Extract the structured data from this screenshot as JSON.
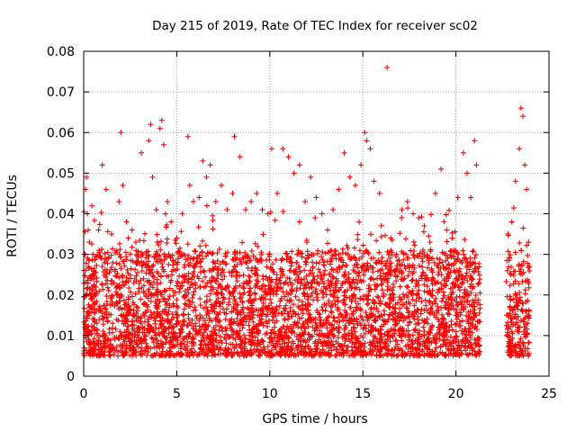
{
  "chart_data": {
    "type": "scatter",
    "title": "Day 215 of 2019, Rate Of TEC Index for receiver sc02",
    "xlabel": "GPS time / hours",
    "ylabel": "ROTI / TECUs",
    "xlim": [
      0,
      25
    ],
    "ylim": [
      0,
      0.08
    ],
    "xticks": [
      0,
      5,
      10,
      15,
      20,
      25
    ],
    "xtick_labels": [
      "0",
      "5",
      "10",
      "15",
      "20",
      "25"
    ],
    "yticks": [
      0,
      0.01,
      0.02,
      0.03,
      0.04,
      0.05,
      0.06,
      0.07,
      0.08
    ],
    "ytick_labels": [
      "0",
      "0.01",
      "0.02",
      "0.03",
      "0.04",
      "0.05",
      "0.06",
      "0.07",
      "0.08"
    ],
    "grid": true,
    "marker": "+",
    "marker_color": "#ff0000",
    "data_gap_hours": [
      21.3,
      22.7
    ],
    "series": [
      {
        "name": "ROTI",
        "points": [
          [
            0.1,
            0.046
          ],
          [
            0.15,
            0.049
          ],
          [
            0.2,
            0.04
          ],
          [
            0.3,
            0.033
          ],
          [
            0.5,
            0.03
          ],
          [
            0.8,
            0.036
          ],
          [
            1.0,
            0.052
          ],
          [
            1.2,
            0.046
          ],
          [
            1.5,
            0.035
          ],
          [
            1.9,
            0.043
          ],
          [
            2.0,
            0.06
          ],
          [
            2.1,
            0.047
          ],
          [
            2.3,
            0.038
          ],
          [
            2.6,
            0.036
          ],
          [
            2.8,
            0.033
          ],
          [
            3.1,
            0.055
          ],
          [
            3.5,
            0.058
          ],
          [
            3.6,
            0.062
          ],
          [
            3.7,
            0.049
          ],
          [
            3.9,
            0.041
          ],
          [
            4.1,
            0.061
          ],
          [
            4.2,
            0.063
          ],
          [
            4.3,
            0.057
          ],
          [
            4.5,
            0.043
          ],
          [
            4.7,
            0.038
          ],
          [
            5.0,
            0.034
          ],
          [
            5.3,
            0.04
          ],
          [
            5.6,
            0.059
          ],
          [
            5.7,
            0.047
          ],
          [
            5.9,
            0.043
          ],
          [
            6.2,
            0.044
          ],
          [
            6.4,
            0.053
          ],
          [
            6.6,
            0.049
          ],
          [
            6.8,
            0.052
          ],
          [
            7.1,
            0.043
          ],
          [
            7.4,
            0.047
          ],
          [
            7.7,
            0.041
          ],
          [
            8.0,
            0.045
          ],
          [
            8.1,
            0.059
          ],
          [
            8.4,
            0.054
          ],
          [
            8.7,
            0.041
          ],
          [
            9.0,
            0.043
          ],
          [
            9.3,
            0.045
          ],
          [
            9.6,
            0.041
          ],
          [
            9.9,
            0.04
          ],
          [
            10.1,
            0.056
          ],
          [
            10.4,
            0.045
          ],
          [
            10.7,
            0.056
          ],
          [
            11.0,
            0.054
          ],
          [
            11.3,
            0.05
          ],
          [
            11.6,
            0.052
          ],
          [
            11.9,
            0.043
          ],
          [
            12.2,
            0.049
          ],
          [
            12.5,
            0.044
          ],
          [
            12.8,
            0.04
          ],
          [
            13.1,
            0.036
          ],
          [
            13.4,
            0.041
          ],
          [
            13.7,
            0.046
          ],
          [
            14.0,
            0.055
          ],
          [
            14.3,
            0.049
          ],
          [
            14.6,
            0.047
          ],
          [
            14.9,
            0.052
          ],
          [
            15.1,
            0.06
          ],
          [
            15.2,
            0.058
          ],
          [
            15.4,
            0.056
          ],
          [
            15.6,
            0.048
          ],
          [
            15.9,
            0.045
          ],
          [
            16.3,
            0.076
          ],
          [
            16.5,
            0.034
          ],
          [
            16.8,
            0.03
          ],
          [
            17.1,
            0.041
          ],
          [
            17.4,
            0.043
          ],
          [
            17.7,
            0.04
          ],
          [
            18.0,
            0.039
          ],
          [
            18.3,
            0.037
          ],
          [
            18.6,
            0.033
          ],
          [
            18.9,
            0.045
          ],
          [
            19.2,
            0.051
          ],
          [
            19.5,
            0.036
          ],
          [
            19.8,
            0.034
          ],
          [
            20.1,
            0.044
          ],
          [
            20.4,
            0.055
          ],
          [
            20.6,
            0.05
          ],
          [
            20.8,
            0.044
          ],
          [
            21.0,
            0.058
          ],
          [
            21.1,
            0.052
          ],
          [
            22.8,
            0.035
          ],
          [
            23.0,
            0.038
          ],
          [
            23.2,
            0.048
          ],
          [
            23.4,
            0.056
          ],
          [
            23.5,
            0.066
          ],
          [
            23.6,
            0.064
          ],
          [
            23.7,
            0.052
          ],
          [
            23.8,
            0.046
          ],
          [
            23.9,
            0.033
          ]
        ]
      }
    ]
  }
}
